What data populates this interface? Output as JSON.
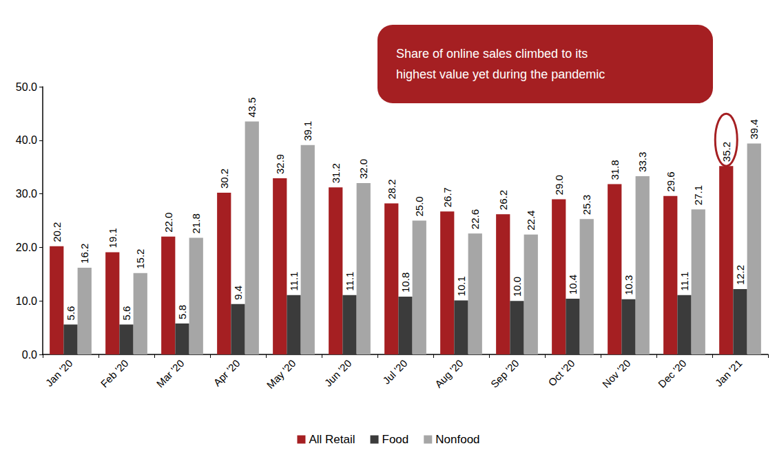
{
  "chart_data": {
    "type": "bar",
    "categories": [
      "Jan '20",
      "Feb '20",
      "Mar '20",
      "Apr '20",
      "May '20",
      "Jun '20",
      "Jul '20",
      "Aug '20",
      "Sep '20",
      "Oct '20",
      "Nov '20",
      "Dec '20",
      "Jan '21"
    ],
    "series": [
      {
        "name": "All Retail",
        "color": "#a51f22",
        "values": [
          20.2,
          19.1,
          22.0,
          30.2,
          32.9,
          31.2,
          28.2,
          26.7,
          26.2,
          29.0,
          31.8,
          29.6,
          35.2
        ],
        "value_labels": [
          "20.2",
          "19.1",
          "22.0",
          "30.2",
          "32.9",
          "31.2",
          "28.2",
          "26.7",
          "26.2",
          "29.0",
          "31.8",
          "29.6",
          "35.2"
        ]
      },
      {
        "name": "Food",
        "color": "#3b3b3b",
        "values": [
          5.6,
          5.6,
          5.8,
          9.4,
          11.1,
          11.1,
          10.8,
          10.1,
          10.0,
          10.4,
          10.3,
          11.1,
          12.2
        ],
        "value_labels": [
          "5.6",
          "5.6",
          "5.8",
          "9.4",
          "11.1",
          "11.1",
          "10.8",
          "10.1",
          "10.0",
          "10.4",
          "10.3",
          "11.1",
          "12.2"
        ]
      },
      {
        "name": "Nonfood",
        "color": "#a6a6a6",
        "values": [
          16.2,
          15.2,
          21.8,
          43.5,
          39.1,
          32.0,
          25.0,
          22.6,
          22.4,
          25.3,
          33.3,
          27.1,
          39.4
        ],
        "value_labels": [
          "16.2",
          "15.2",
          "21.8",
          "43.5",
          "39.1",
          "32.0",
          "25.0",
          "22.6",
          "22.4",
          "25.3",
          "33.3",
          "27.1",
          "39.4"
        ]
      }
    ],
    "ylim": [
      0,
      50
    ],
    "yticks": [
      {
        "value": 0,
        "label": "0.0"
      },
      {
        "value": 10,
        "label": "10.0"
      },
      {
        "value": 20,
        "label": "20.0"
      },
      {
        "value": 30,
        "label": "30.0"
      },
      {
        "value": 40,
        "label": "40.0"
      },
      {
        "value": 50,
        "label": "50.0"
      }
    ],
    "grid": false,
    "legend": "bottom",
    "data_labels": true,
    "annotations": [
      {
        "text": "Share of online sales climbed to its\nhighest value yet during the pandemic"
      }
    ]
  }
}
